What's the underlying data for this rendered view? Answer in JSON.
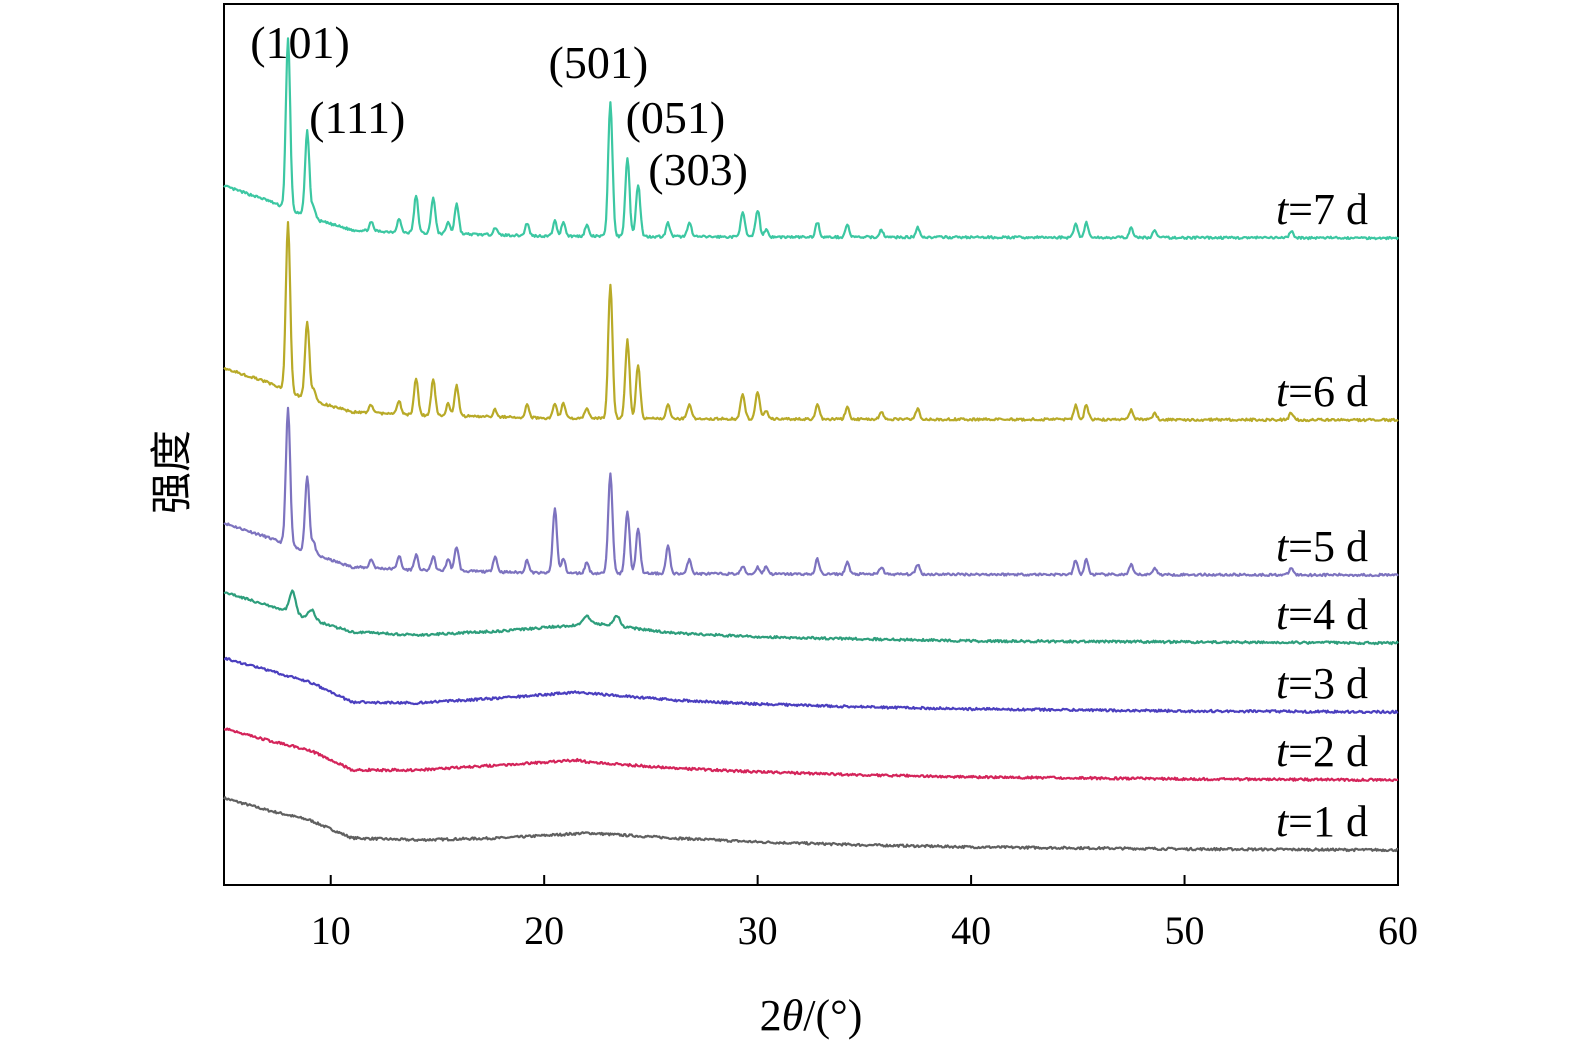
{
  "chart_data": {
    "type": "line",
    "xlabel": "2θ/(°)",
    "ylabel": "强度",
    "xlim": [
      5,
      60
    ],
    "xticks": [
      10,
      20,
      30,
      40,
      50,
      60
    ],
    "grid": false,
    "series": [
      {
        "name": "t=1 d",
        "label_prefix": "t",
        "label_suffix": "=1 d",
        "color": "#606060",
        "offset": 0,
        "crystalline": false,
        "hump_height": 6,
        "curve_points": [
          [
            5,
            52
          ],
          [
            7,
            40
          ],
          [
            9,
            30
          ],
          [
            11,
            12
          ],
          [
            14,
            10
          ],
          [
            18,
            12
          ],
          [
            22,
            17
          ],
          [
            26,
            12
          ],
          [
            30,
            8
          ],
          [
            35,
            5
          ],
          [
            40,
            3
          ],
          [
            50,
            1
          ],
          [
            60,
            0
          ]
        ]
      },
      {
        "name": "t=2 d",
        "label_prefix": "t",
        "label_suffix": "=2 d",
        "color": "#d4245a",
        "offset": 70,
        "crystalline": false,
        "hump_height": 12,
        "curve_points": [
          [
            5,
            52
          ],
          [
            7,
            40
          ],
          [
            9,
            30
          ],
          [
            11,
            10
          ],
          [
            14,
            10
          ],
          [
            18,
            15
          ],
          [
            21.6,
            20
          ],
          [
            22,
            18
          ],
          [
            26,
            12
          ],
          [
            30,
            8
          ],
          [
            35,
            5
          ],
          [
            40,
            3
          ],
          [
            50,
            1
          ],
          [
            60,
            0
          ]
        ]
      },
      {
        "name": "t=3 d",
        "label_prefix": "t",
        "label_suffix": "=3 d",
        "color": "#4b3fbf",
        "offset": 138,
        "crystalline": false,
        "hump_height": 14,
        "curve_points": [
          [
            5,
            54
          ],
          [
            7,
            42
          ],
          [
            9,
            30
          ],
          [
            11,
            10
          ],
          [
            14,
            9
          ],
          [
            18,
            14
          ],
          [
            21.6,
            20
          ],
          [
            22.5,
            18
          ],
          [
            26,
            12
          ],
          [
            30,
            8
          ],
          [
            35,
            5
          ],
          [
            40,
            3
          ],
          [
            50,
            1
          ],
          [
            60,
            0
          ]
        ]
      },
      {
        "name": "t=4 d",
        "label_prefix": "t",
        "label_suffix": "=4 d",
        "color": "#2e9e7c",
        "offset": 207,
        "crystalline": false,
        "hump_height": 16,
        "curve_points": [
          [
            5,
            51
          ],
          [
            7,
            38
          ],
          [
            9,
            24
          ],
          [
            11,
            11
          ],
          [
            14,
            8
          ],
          [
            18,
            12
          ],
          [
            21.6,
            18
          ],
          [
            22,
            21
          ],
          [
            23,
            18
          ],
          [
            26,
            10
          ],
          [
            30,
            6
          ],
          [
            35,
            4
          ],
          [
            40,
            2
          ],
          [
            50,
            1
          ],
          [
            60,
            0
          ]
        ],
        "small_peaks": [
          [
            8.2,
            22
          ],
          [
            9.1,
            10
          ],
          [
            22.0,
            6
          ],
          [
            23.4,
            10
          ]
        ]
      },
      {
        "name": "t=5 d",
        "label_prefix": "t",
        "label_suffix": "=5 d",
        "color": "#7d73bf",
        "offset": 275,
        "crystalline": true,
        "main_peaks": [
          [
            8.0,
            136
          ],
          [
            8.9,
            76
          ],
          [
            20.5,
            50
          ],
          [
            23.1,
            101
          ],
          [
            23.9,
            62
          ],
          [
            24.4,
            44
          ],
          [
            25.8,
            14
          ],
          [
            15.9,
            14
          ],
          [
            17.7,
            8
          ]
        ],
        "curve_points": [
          [
            5,
            52
          ],
          [
            7,
            38
          ],
          [
            9,
            22
          ],
          [
            11,
            8
          ],
          [
            14,
            5
          ],
          [
            20,
            2
          ],
          [
            30,
            1
          ],
          [
            60,
            0
          ]
        ]
      },
      {
        "name": "t=6 d",
        "label_prefix": "t",
        "label_suffix": "=6 d",
        "color": "#b8aa28",
        "offset": 430,
        "crystalline": true,
        "main_peaks": [
          [
            8.0,
            168
          ],
          [
            8.9,
            78
          ],
          [
            23.1,
            134
          ],
          [
            23.9,
            78
          ],
          [
            24.4,
            52
          ],
          [
            29.3,
            18
          ],
          [
            30.0,
            20
          ],
          [
            14.0,
            22
          ],
          [
            14.8,
            22
          ],
          [
            15.9,
            20
          ]
        ],
        "curve_points": [
          [
            5,
            52
          ],
          [
            7,
            38
          ],
          [
            9,
            20
          ],
          [
            11,
            8
          ],
          [
            14,
            5
          ],
          [
            20,
            2
          ],
          [
            30,
            1
          ],
          [
            60,
            0
          ]
        ]
      },
      {
        "name": "t=7 d",
        "label_prefix": "t",
        "label_suffix": "=7 d",
        "color": "#3cc7a2",
        "offset": 612,
        "crystalline": true,
        "main_peaks": [
          [
            8.0,
            170
          ],
          [
            8.9,
            86
          ],
          [
            23.1,
            134
          ],
          [
            23.9,
            78
          ],
          [
            24.4,
            52
          ],
          [
            29.3,
            18
          ],
          [
            30.0,
            20
          ],
          [
            14.0,
            22
          ],
          [
            14.8,
            22
          ],
          [
            15.9,
            20
          ]
        ],
        "curve_points": [
          [
            5,
            52
          ],
          [
            7,
            38
          ],
          [
            9,
            20
          ],
          [
            11,
            8
          ],
          [
            14,
            5
          ],
          [
            20,
            2
          ],
          [
            30,
            1
          ],
          [
            60,
            0
          ]
        ]
      }
    ],
    "peak_annotations": [
      {
        "text": "(101)",
        "x": 8.0
      },
      {
        "text": "(111)",
        "x": 8.9
      },
      {
        "text": "(501)",
        "x": 23.1
      },
      {
        "text": "(051)",
        "x": 23.9
      },
      {
        "text": "(303)",
        "x": 24.4
      }
    ]
  }
}
